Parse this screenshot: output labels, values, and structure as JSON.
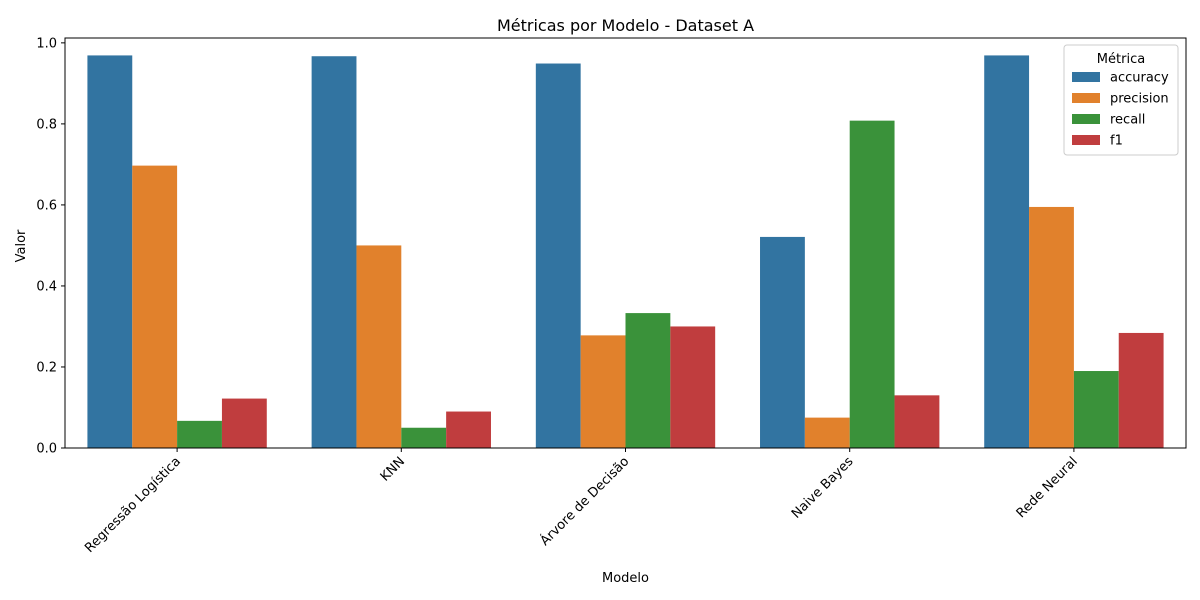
{
  "chart_data": {
    "type": "bar",
    "title": "Métricas por Modelo - Dataset A",
    "xlabel": "Modelo",
    "ylabel": "Valor",
    "categories": [
      "Regressão Logística",
      "KNN",
      "Árvore de Decisão",
      "Naive Bayes",
      "Rede Neural"
    ],
    "ylim": [
      0,
      1.0
    ],
    "yticks": [
      "0.0",
      "0.2",
      "0.4",
      "0.6",
      "0.8",
      "1.0"
    ],
    "ytick_values": [
      0,
      0.2,
      0.4,
      0.6,
      0.8,
      1.0
    ],
    "legend": {
      "title": "Métrica",
      "position": "top-right"
    },
    "grid": false,
    "series": [
      {
        "name": "accuracy",
        "color": "#3274a1",
        "values": [
          0.969,
          0.967,
          0.949,
          0.521,
          0.969
        ]
      },
      {
        "name": "precision",
        "color": "#e1812c",
        "values": [
          0.697,
          0.5,
          0.278,
          0.075,
          0.595
        ]
      },
      {
        "name": "recall",
        "color": "#3a923a",
        "values": [
          0.067,
          0.05,
          0.333,
          0.808,
          0.19
        ]
      },
      {
        "name": "f1",
        "color": "#c03d3e",
        "values": [
          0.122,
          0.09,
          0.3,
          0.13,
          0.284
        ]
      }
    ]
  }
}
